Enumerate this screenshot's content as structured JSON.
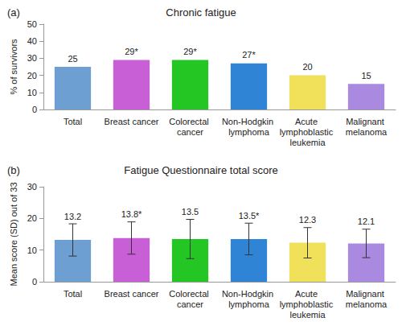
{
  "chart_data": [
    {
      "type": "bar",
      "panel": "(a)",
      "title": "Chronic fatigue",
      "ylabel": "% of survivors",
      "categories": [
        "Total",
        "Breast cancer",
        "Colorectal cancer",
        "Non-Hodgkin lymphoma",
        "Acute lymphoblastic leukemia",
        "Malignant melanoma"
      ],
      "values": [
        25,
        29,
        29,
        27,
        20,
        15
      ],
      "value_labels": [
        "25",
        "29*",
        "29*",
        "27*",
        "20",
        "15"
      ],
      "colors": [
        "#6d9fd3",
        "#c85fd6",
        "#23c623",
        "#2f84d6",
        "#f0e05a",
        "#a98ae0"
      ],
      "ylim": [
        0,
        50
      ],
      "yticks": [
        0,
        10,
        20,
        30,
        40,
        50
      ],
      "grid": false,
      "data_labels": true
    },
    {
      "type": "bar",
      "panel": "(b)",
      "title": "Fatigue Questionnaire total score",
      "ylabel": "Mean score (SD) out of 33",
      "categories": [
        "Total",
        "Breast cancer",
        "Colorectal cancer",
        "Non-Hodgkin lymphoma",
        "Acute lymphoblastic leukemia",
        "Malignant melanoma"
      ],
      "values": [
        13.2,
        13.8,
        13.5,
        13.5,
        12.3,
        12.1
      ],
      "value_labels": [
        "13.2",
        "13.8*",
        "13.5",
        "13.5*",
        "12.3",
        "12.1"
      ],
      "errors": [
        5.1,
        5.1,
        6.2,
        5.0,
        4.8,
        4.5
      ],
      "colors": [
        "#6d9fd3",
        "#c85fd6",
        "#23c623",
        "#2f84d6",
        "#f0e05a",
        "#a98ae0"
      ],
      "ylim": [
        0,
        30
      ],
      "yticks": [
        0,
        10,
        20,
        30
      ],
      "grid": false,
      "data_labels": true
    }
  ]
}
